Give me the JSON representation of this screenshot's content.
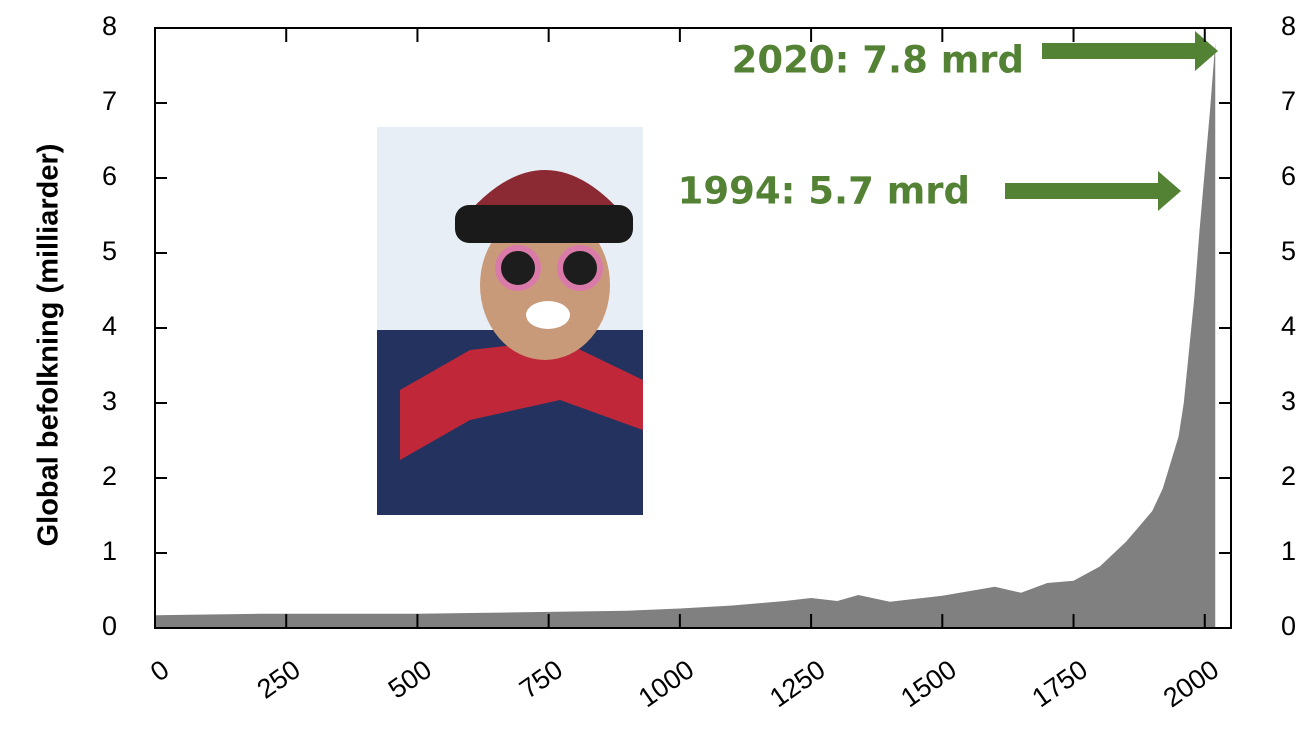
{
  "chart_data": {
    "type": "area",
    "y_label": "Global befolkning (milliarder)",
    "x": [
      0,
      100,
      200,
      300,
      400,
      500,
      600,
      700,
      800,
      900,
      1000,
      1100,
      1200,
      1250,
      1300,
      1340,
      1400,
      1500,
      1600,
      1650,
      1700,
      1750,
      1800,
      1850,
      1900,
      1920,
      1950,
      1960,
      1970,
      1980,
      1990,
      2000,
      2010,
      2020
    ],
    "values": [
      0.17,
      0.18,
      0.19,
      0.19,
      0.19,
      0.19,
      0.2,
      0.21,
      0.22,
      0.23,
      0.26,
      0.3,
      0.36,
      0.4,
      0.36,
      0.44,
      0.35,
      0.43,
      0.55,
      0.47,
      0.6,
      0.63,
      0.82,
      1.15,
      1.56,
      1.86,
      2.55,
      3.0,
      3.7,
      4.4,
      5.3,
      6.1,
      6.9,
      7.8
    ],
    "color": "#808080",
    "xlim": [
      0,
      2050
    ],
    "xticks": [
      0,
      250,
      500,
      750,
      1000,
      1250,
      1500,
      1750,
      2000
    ],
    "ylim": [
      0,
      8
    ],
    "yticks": [
      0,
      1,
      2,
      3,
      4,
      5,
      6,
      7,
      8
    ],
    "annotations": [
      "2020: 7.8 mrd",
      "1994: 5.7 mrd"
    ],
    "annotation_color": "#548235"
  }
}
